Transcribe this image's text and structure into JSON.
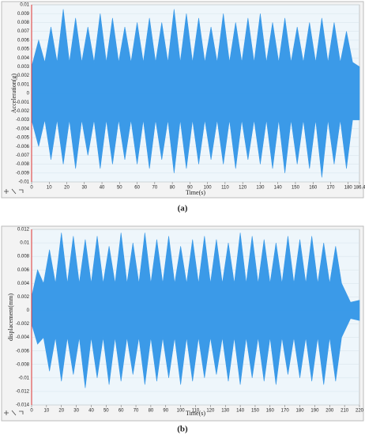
{
  "chart_data": [
    {
      "type": "area-envelope",
      "caption": "(a)",
      "xlabel": "Time(s)",
      "ylabel": "Acceleration(g)",
      "color": "#3b9ae8",
      "x": [
        0,
        4,
        7.5,
        11,
        14.5,
        18,
        21.5,
        25,
        28.5,
        32,
        35.5,
        39,
        42.5,
        46,
        49.5,
        53,
        56.5,
        60,
        63.5,
        67,
        70.5,
        74,
        77.5,
        81,
        84.5,
        88,
        91.5,
        95,
        98.5,
        102,
        105.5,
        109,
        112.5,
        116,
        119.5,
        123,
        126.5,
        130,
        133.5,
        137,
        140.5,
        144,
        147.5,
        151,
        154.5,
        158,
        161.5,
        165,
        168.5,
        172,
        175.5,
        179,
        182.5,
        186.4
      ],
      "upper": [
        0.003,
        0.006,
        0.0035,
        0.0075,
        0.0035,
        0.0095,
        0.0035,
        0.0085,
        0.0035,
        0.0075,
        0.0035,
        0.009,
        0.0035,
        0.0085,
        0.0035,
        0.0075,
        0.0035,
        0.008,
        0.0035,
        0.0085,
        0.0035,
        0.008,
        0.0035,
        0.0095,
        0.0035,
        0.009,
        0.0035,
        0.0085,
        0.0035,
        0.0075,
        0.0035,
        0.009,
        0.0035,
        0.008,
        0.0035,
        0.0085,
        0.0035,
        0.009,
        0.0035,
        0.008,
        0.0035,
        0.0085,
        0.0035,
        0.0075,
        0.0035,
        0.008,
        0.0035,
        0.0085,
        0.0035,
        0.008,
        0.0035,
        0.007,
        0.0035,
        0.003
      ],
      "lower": [
        -0.003,
        -0.006,
        -0.003,
        -0.0075,
        -0.003,
        -0.008,
        -0.003,
        -0.0085,
        -0.003,
        -0.007,
        -0.003,
        -0.0085,
        -0.003,
        -0.008,
        -0.003,
        -0.0075,
        -0.003,
        -0.008,
        -0.003,
        -0.0085,
        -0.003,
        -0.0075,
        -0.003,
        -0.009,
        -0.003,
        -0.0085,
        -0.003,
        -0.008,
        -0.003,
        -0.0075,
        -0.003,
        -0.008,
        -0.003,
        -0.0085,
        -0.003,
        -0.0075,
        -0.003,
        -0.008,
        -0.003,
        -0.0085,
        -0.003,
        -0.009,
        -0.003,
        -0.008,
        -0.003,
        -0.0085,
        -0.003,
        -0.0095,
        -0.003,
        -0.008,
        -0.003,
        -0.0085,
        -0.003,
        -0.003
      ],
      "xlim": [
        0,
        186.4
      ],
      "xticks": [
        0,
        10,
        20,
        30,
        40,
        50,
        60,
        70,
        80,
        90,
        100,
        110,
        120,
        130,
        140,
        150,
        160,
        170,
        180,
        186.4
      ],
      "ylim": [
        -0.01,
        0.01
      ],
      "yticks": [
        -0.01,
        -0.009,
        -0.008,
        -0.007,
        -0.006,
        -0.005,
        -0.004,
        -0.003,
        -0.002,
        -0.001,
        0,
        0.001,
        0.002,
        0.003,
        0.004,
        0.005,
        0.006,
        0.007,
        0.008,
        0.009,
        0.01
      ]
    },
    {
      "type": "area-envelope",
      "caption": "(b)",
      "xlabel": "Time(s)",
      "ylabel": "displacement(mm)",
      "color": "#3b9ae8",
      "x": [
        0,
        4,
        8,
        12,
        16,
        20,
        24,
        28,
        32,
        36,
        40,
        44,
        48,
        52,
        56,
        60,
        64,
        68,
        72,
        76,
        80,
        84,
        88,
        92,
        96,
        100,
        104,
        108,
        112,
        116,
        120,
        124,
        128,
        132,
        136,
        140,
        144,
        148,
        152,
        156,
        160,
        164,
        168,
        172,
        176,
        180,
        184,
        188,
        192,
        196,
        200,
        204,
        208,
        214,
        220
      ],
      "upper": [
        0.002,
        0.006,
        0.004,
        0.009,
        0.004,
        0.0115,
        0.004,
        0.011,
        0.004,
        0.0105,
        0.004,
        0.011,
        0.004,
        0.0095,
        0.004,
        0.0115,
        0.004,
        0.01,
        0.004,
        0.0115,
        0.004,
        0.0105,
        0.004,
        0.011,
        0.004,
        0.0095,
        0.004,
        0.0105,
        0.004,
        0.011,
        0.004,
        0.0105,
        0.004,
        0.01,
        0.004,
        0.0115,
        0.004,
        0.011,
        0.004,
        0.0105,
        0.004,
        0.01,
        0.004,
        0.011,
        0.004,
        0.0105,
        0.004,
        0.011,
        0.004,
        0.01,
        0.004,
        0.0095,
        0.004,
        0.0012,
        0.0015
      ],
      "lower": [
        -0.002,
        -0.005,
        -0.004,
        -0.009,
        -0.004,
        -0.0105,
        -0.004,
        -0.0095,
        -0.004,
        -0.0115,
        -0.004,
        -0.01,
        -0.004,
        -0.011,
        -0.004,
        -0.0105,
        -0.004,
        -0.0095,
        -0.004,
        -0.011,
        -0.004,
        -0.0105,
        -0.004,
        -0.01,
        -0.004,
        -0.011,
        -0.004,
        -0.0105,
        -0.004,
        -0.01,
        -0.004,
        -0.0095,
        -0.004,
        -0.0105,
        -0.004,
        -0.011,
        -0.004,
        -0.01,
        -0.004,
        -0.0105,
        -0.004,
        -0.011,
        -0.004,
        -0.0095,
        -0.004,
        -0.01,
        -0.004,
        -0.0105,
        -0.004,
        -0.011,
        -0.004,
        -0.0105,
        -0.004,
        -0.0012,
        -0.0015
      ],
      "xlim": [
        0,
        220
      ],
      "xticks": [
        0,
        10,
        20,
        30,
        40,
        50,
        60,
        70,
        80,
        90,
        100,
        110,
        120,
        130,
        140,
        150,
        160,
        170,
        180,
        190,
        200,
        210,
        220
      ],
      "ylim": [
        -0.014,
        0.012
      ],
      "yticks": [
        -0.014,
        -0.012,
        -0.01,
        -0.008,
        -0.006,
        -0.004,
        -0.002,
        0,
        0.002,
        0.004,
        0.006,
        0.008,
        0.01,
        0.012
      ]
    }
  ]
}
